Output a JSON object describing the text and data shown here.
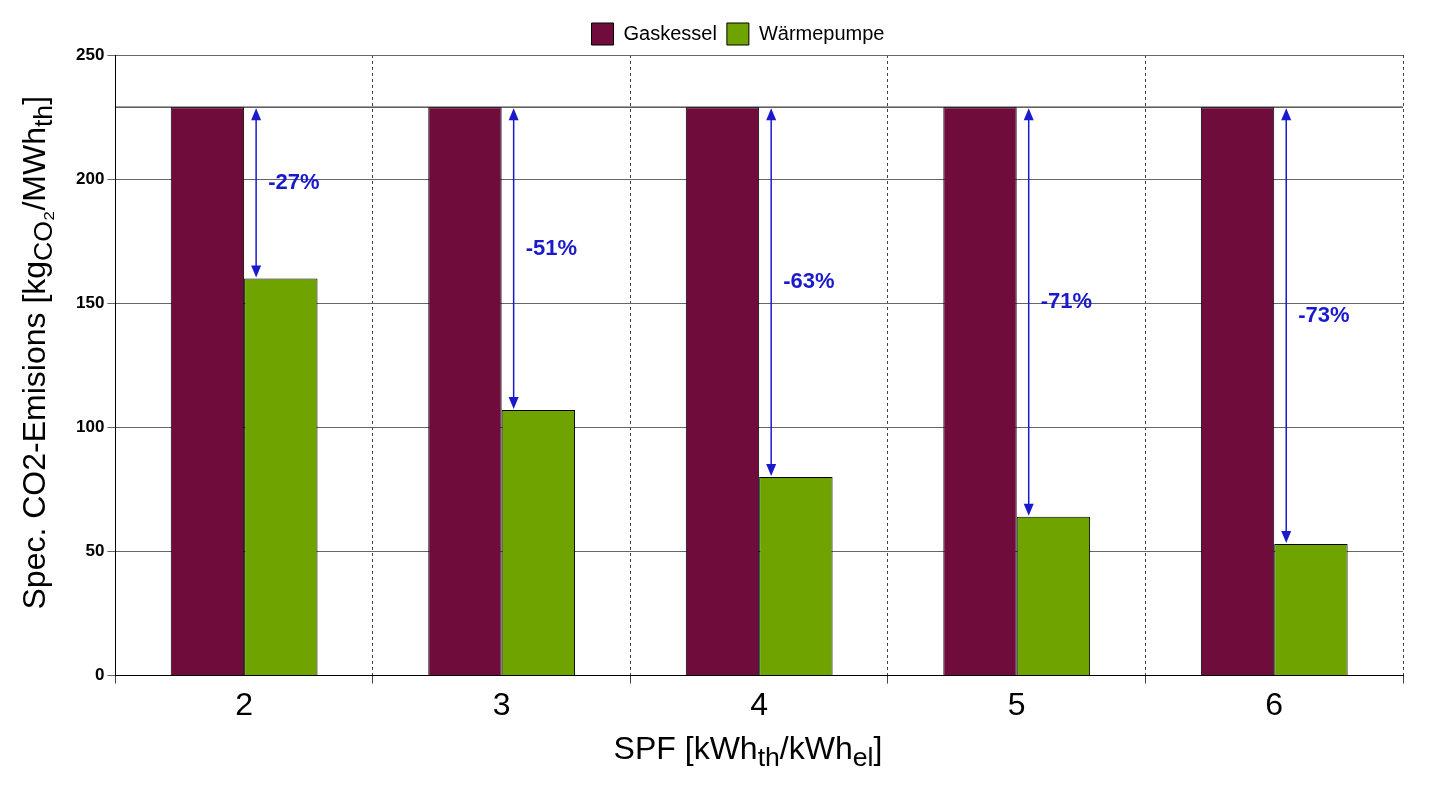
{
  "chart_data": {
    "type": "bar",
    "xlabel": "SPF [kWh$_{th}$/kWh$_{el}$]",
    "ylabel": "Spec. CO2-Emisions [kg$_{CO₂}$/MWh$_{th}$]",
    "categories": [
      "2",
      "3",
      "4",
      "5",
      "6"
    ],
    "series": [
      {
        "name": "Gaskessel",
        "color": "#700c3c",
        "values": [
          229,
          229,
          229,
          229,
          229
        ]
      },
      {
        "name": "Wärmepumpe",
        "color": "#6fa300",
        "values": [
          160,
          107,
          80,
          64,
          53
        ]
      }
    ],
    "ylim": [
      0,
      250
    ],
    "yticks": [
      0,
      50,
      100,
      150,
      200,
      250
    ],
    "grid": true,
    "legend": "top",
    "ref_lines": [
      {
        "axis": "y",
        "value": 229,
        "color": "#000000"
      }
    ],
    "annotations": [
      "-27%",
      "-51%",
      "-63%",
      "-71%",
      "-73%"
    ]
  }
}
